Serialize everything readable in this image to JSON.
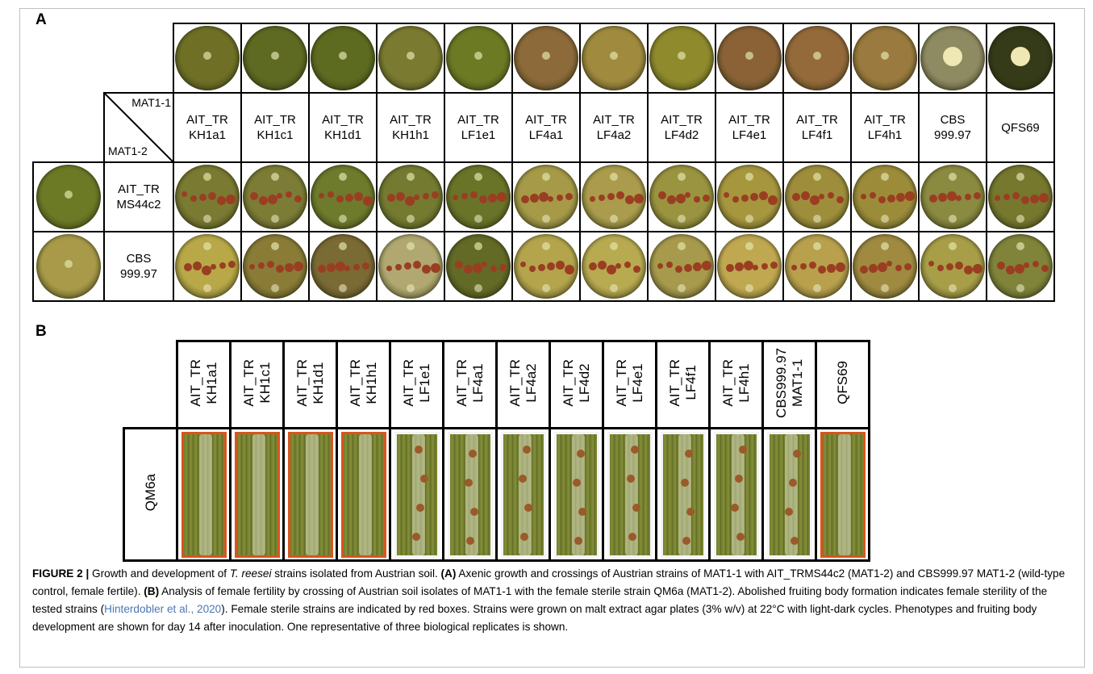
{
  "panel_a": {
    "label": "A",
    "mat1_label": "MAT1-1",
    "mat2_label": "MAT1-2",
    "columns": [
      {
        "l1": "AIT_TR",
        "l2": "KH1a1",
        "plate": "#6f7026"
      },
      {
        "l1": "AIT_TR",
        "l2": "KH1c1",
        "plate": "#5e6a22"
      },
      {
        "l1": "AIT_TR",
        "l2": "KH1d1",
        "plate": "#5d6b20"
      },
      {
        "l1": "AIT_TR",
        "l2": "KH1h1",
        "plate": "#7a7a30"
      },
      {
        "l1": "AIT_TR",
        "l2": "LF1e1",
        "plate": "#6c7a24"
      },
      {
        "l1": "AIT_TR",
        "l2": "LF4a1",
        "plate": "#8c6a3a"
      },
      {
        "l1": "AIT_TR",
        "l2": "LF4a2",
        "plate": "#a08a3e"
      },
      {
        "l1": "AIT_TR",
        "l2": "LF4d2",
        "plate": "#8f8a2c"
      },
      {
        "l1": "AIT_TR",
        "l2": "LF4e1",
        "plate": "#8a6236"
      },
      {
        "l1": "AIT_TR",
        "l2": "LF4f1",
        "plate": "#956a3a"
      },
      {
        "l1": "AIT_TR",
        "l2": "LF4h1",
        "plate": "#9a7a3e"
      },
      {
        "l1": "CBS",
        "l2": "999.97",
        "plate": "#8e8a62"
      },
      {
        "l1": "QFS69",
        "l2": "",
        "plate": "#353a18"
      }
    ],
    "rows": [
      {
        "l1": "AIT_TR",
        "l2": "MS44c2",
        "plate": "#6c7a26",
        "cross_plates": [
          "#7a7a32",
          "#7c7c36",
          "#6e7a2c",
          "#747a30",
          "#6a7428",
          "#a69a48",
          "#aa9c4c",
          "#9a9440",
          "#a6963e",
          "#9e8e3c",
          "#9c8c3a",
          "#8a8a40",
          "#76782e"
        ]
      },
      {
        "l1": "CBS",
        "l2": "999.97",
        "plate": "#a89a48",
        "cross_plates": [
          "#b8a848",
          "#8a7c36",
          "#7a6a34",
          "#b0a870",
          "#626a26",
          "#b4a44c",
          "#b8aa50",
          "#a89a4c",
          "#c0a850",
          "#b8a04c",
          "#a08a40",
          "#a89e48",
          "#80843a"
        ]
      }
    ]
  },
  "panel_b": {
    "label": "B",
    "row_label": "QM6a",
    "columns": [
      {
        "text": "AIT_TR\nKH1a1",
        "box": "red"
      },
      {
        "text": "AIT_TR\nKH1c1",
        "box": "red"
      },
      {
        "text": "AIT_TR\nKH1d1",
        "box": "red"
      },
      {
        "text": "AIT_TR\nKH1h1",
        "box": "red"
      },
      {
        "text": "AIT_TR\nLF1e1",
        "box": "white"
      },
      {
        "text": "AIT_TR\nLF4a1",
        "box": "white"
      },
      {
        "text": "AIT_TR\nLF4a2",
        "box": "white"
      },
      {
        "text": "AIT_TR\nLF4d2",
        "box": "white"
      },
      {
        "text": "AIT_TR\nLF4e1",
        "box": "white"
      },
      {
        "text": "AIT_TR\nLF4f1",
        "box": "white"
      },
      {
        "text": "AIT_TR\nLF4h1",
        "box": "white"
      },
      {
        "text": "CBS999.97\nMAT1-1",
        "box": "white"
      },
      {
        "text": "QFS69",
        "box": "red"
      }
    ],
    "colors": {
      "sterile_box": "#d9541e",
      "fertile_box": "#f4f4f4"
    }
  },
  "caption": {
    "fig": "FIGURE 2 |",
    "t1": " Growth and development of ",
    "species": "T. reesei",
    "t2": " strains isolated from Austrian soil. ",
    "a_label": "(A)",
    "t3": " Axenic growth and crossings of Austrian strains of MAT1-1 with AIT_TRMS44c2 (MAT1-2) and CBS999.97 MAT1-2 (wild-type control, female fertile). ",
    "b_label": "(B)",
    "t4": " Analysis of female fertility by crossing of Austrian soil isolates of MAT1-1 with the female sterile strain QM6a (MAT1-2). Abolished fruiting body formation indicates female sterility of the tested strains (",
    "cite": "Hinterdobler et al., 2020",
    "t5": "). Female sterile strains are indicated by red boxes. Strains were grown on malt extract agar plates (3% w/v) at 22°C with light-dark cycles. Phenotypes and fruiting body development are shown for day 14 after inoculation. One representative of three biological replicates is shown."
  }
}
